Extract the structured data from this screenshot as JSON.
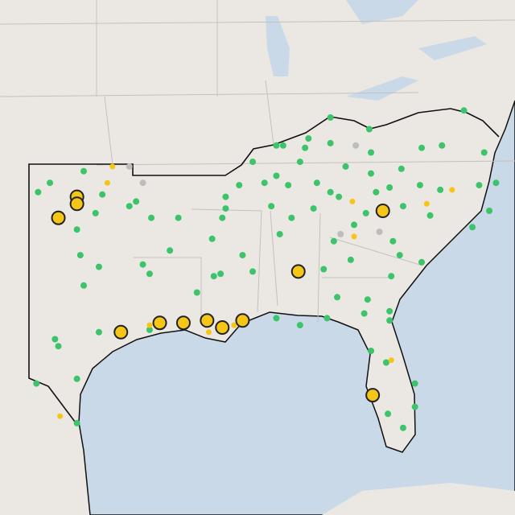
{
  "markers": [
    {
      "color": "#3cc46a",
      "points": [
        [
          -101.8,
          35.7
        ],
        [
          -102.5,
          35.3
        ],
        [
          -99.8,
          36.2
        ],
        [
          -98.7,
          35.2
        ],
        [
          -97.1,
          34.7
        ],
        [
          -96.7,
          34.9
        ],
        [
          -95.8,
          34.2
        ],
        [
          -94.2,
          34.2
        ],
        [
          -100.2,
          33.7
        ],
        [
          -99.1,
          34.4
        ],
        [
          -100.0,
          32.6
        ],
        [
          -99.8,
          31.3
        ],
        [
          -98.9,
          32.1
        ],
        [
          -96.3,
          32.2
        ],
        [
          -95.9,
          31.8
        ],
        [
          -94.7,
          32.8
        ],
        [
          -101.5,
          29.0
        ],
        [
          -101.3,
          28.7
        ],
        [
          -100.2,
          27.3
        ],
        [
          -102.6,
          27.1
        ],
        [
          -100.2,
          25.4
        ],
        [
          -98.9,
          29.3
        ],
        [
          -95.9,
          29.4
        ],
        [
          -92.7,
          29.9
        ],
        [
          -93.1,
          31.0
        ],
        [
          -91.7,
          31.8
        ],
        [
          -92.2,
          33.3
        ],
        [
          -91.4,
          34.6
        ],
        [
          -91.6,
          34.2
        ],
        [
          -90.6,
          35.6
        ],
        [
          -91.4,
          35.1
        ],
        [
          -89.8,
          36.6
        ],
        [
          -88.4,
          37.3
        ],
        [
          -88.0,
          37.3
        ],
        [
          -86.5,
          37.6
        ],
        [
          -86.7,
          37.2
        ],
        [
          -85.2,
          37.4
        ],
        [
          -85.2,
          38.5
        ],
        [
          -82.9,
          38.0
        ],
        [
          -82.8,
          37.0
        ],
        [
          -84.3,
          36.4
        ],
        [
          -87.0,
          36.6
        ],
        [
          -88.4,
          36.0
        ],
        [
          -89.1,
          35.7
        ],
        [
          -87.7,
          35.6
        ],
        [
          -86.0,
          35.7
        ],
        [
          -85.2,
          35.3
        ],
        [
          -84.7,
          35.1
        ],
        [
          -82.8,
          36.1
        ],
        [
          -81.0,
          36.3
        ],
        [
          -79.9,
          35.6
        ],
        [
          -78.7,
          35.4
        ],
        [
          -76.4,
          35.6
        ],
        [
          -75.8,
          34.5
        ],
        [
          -76.8,
          33.8
        ],
        [
          -79.3,
          34.3
        ],
        [
          -80.9,
          34.7
        ],
        [
          -83.1,
          34.4
        ],
        [
          -82.5,
          35.3
        ],
        [
          -81.7,
          35.5
        ],
        [
          -79.8,
          37.2
        ],
        [
          -78.6,
          37.3
        ],
        [
          -77.3,
          38.8
        ],
        [
          -75.4,
          35.7
        ],
        [
          -76.1,
          37.0
        ],
        [
          -87.5,
          34.2
        ],
        [
          -88.7,
          34.7
        ],
        [
          -88.2,
          33.5
        ],
        [
          -86.2,
          34.6
        ],
        [
          -85.0,
          33.2
        ],
        [
          -85.6,
          32.0
        ],
        [
          -84.0,
          32.4
        ],
        [
          -81.6,
          31.7
        ],
        [
          -79.8,
          32.3
        ],
        [
          -81.1,
          32.6
        ],
        [
          -83.2,
          30.1
        ],
        [
          -81.7,
          30.2
        ],
        [
          -81.7,
          29.8
        ],
        [
          -82.8,
          28.5
        ],
        [
          -81.9,
          28.0
        ],
        [
          -80.2,
          27.1
        ],
        [
          -80.2,
          26.1
        ],
        [
          -80.9,
          25.2
        ],
        [
          -81.8,
          25.8
        ],
        [
          -85.4,
          29.9
        ],
        [
          -87.0,
          29.6
        ],
        [
          -88.4,
          29.9
        ],
        [
          -89.8,
          31.9
        ],
        [
          -90.4,
          32.6
        ],
        [
          -92.1,
          31.7
        ],
        [
          -84.8,
          30.8
        ],
        [
          -83.0,
          30.7
        ],
        [
          -83.8,
          33.9
        ],
        [
          -81.5,
          33.2
        ]
      ]
    },
    {
      "color": "#bdbdbd",
      "points": [
        [
          -96.3,
          35.7
        ],
        [
          -97.1,
          36.4
        ],
        [
          -83.7,
          37.3
        ],
        [
          -84.6,
          33.5
        ],
        [
          -82.3,
          33.6
        ]
      ]
    },
    {
      "color": "#f5c518",
      "points": [
        [
          -98.1,
          36.4
        ],
        [
          -98.4,
          35.7
        ],
        [
          -83.9,
          34.9
        ],
        [
          -83.8,
          33.4
        ],
        [
          -79.5,
          34.8
        ],
        [
          -78.0,
          35.4
        ],
        [
          -81.6,
          28.1
        ],
        [
          -101.2,
          25.7
        ],
        [
          -92.4,
          29.3
        ],
        [
          -95.9,
          29.6
        ],
        [
          -90.9,
          29.6
        ]
      ]
    },
    {
      "color": "#f5c518",
      "points": [
        [
          -100.2,
          35.1
        ],
        [
          -100.2,
          34.8
        ],
        [
          -101.3,
          34.2
        ],
        [
          -97.6,
          29.3
        ],
        [
          -95.3,
          29.7
        ],
        [
          -93.9,
          29.7
        ],
        [
          -92.5,
          29.8
        ],
        [
          -91.6,
          29.5
        ],
        [
          -90.4,
          29.8
        ],
        [
          -87.1,
          31.9
        ],
        [
          -82.1,
          34.5
        ],
        [
          -82.7,
          26.6
        ]
      ]
    }
  ]
}
